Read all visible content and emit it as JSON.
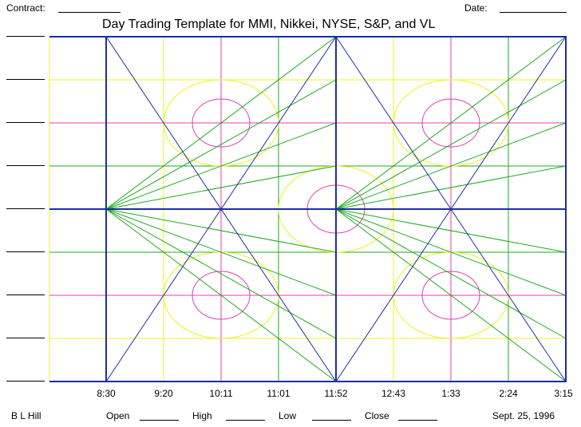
{
  "header": {
    "contract_label": "Contract:",
    "date_label": "Date:",
    "title": "Day Trading Template for MMI, Nikkei, NYSE, S&P, and VL"
  },
  "time_ticks": [
    "8:30",
    "9:20",
    "10:11",
    "11:01",
    "11:52",
    "12:43",
    "1:33",
    "2:24",
    "3:15"
  ],
  "footer": {
    "author": "B L Hill",
    "open_label": "Open",
    "high_label": "High",
    "low_label": "Low",
    "close_label": "Close",
    "date": "Sept. 25, 1996"
  },
  "colors": {
    "frame": "#1a2fa0",
    "diagonal": "#1a2fa0",
    "green": "#22aa22",
    "magenta": "#e040b0",
    "yellow": "#f0f020"
  }
}
